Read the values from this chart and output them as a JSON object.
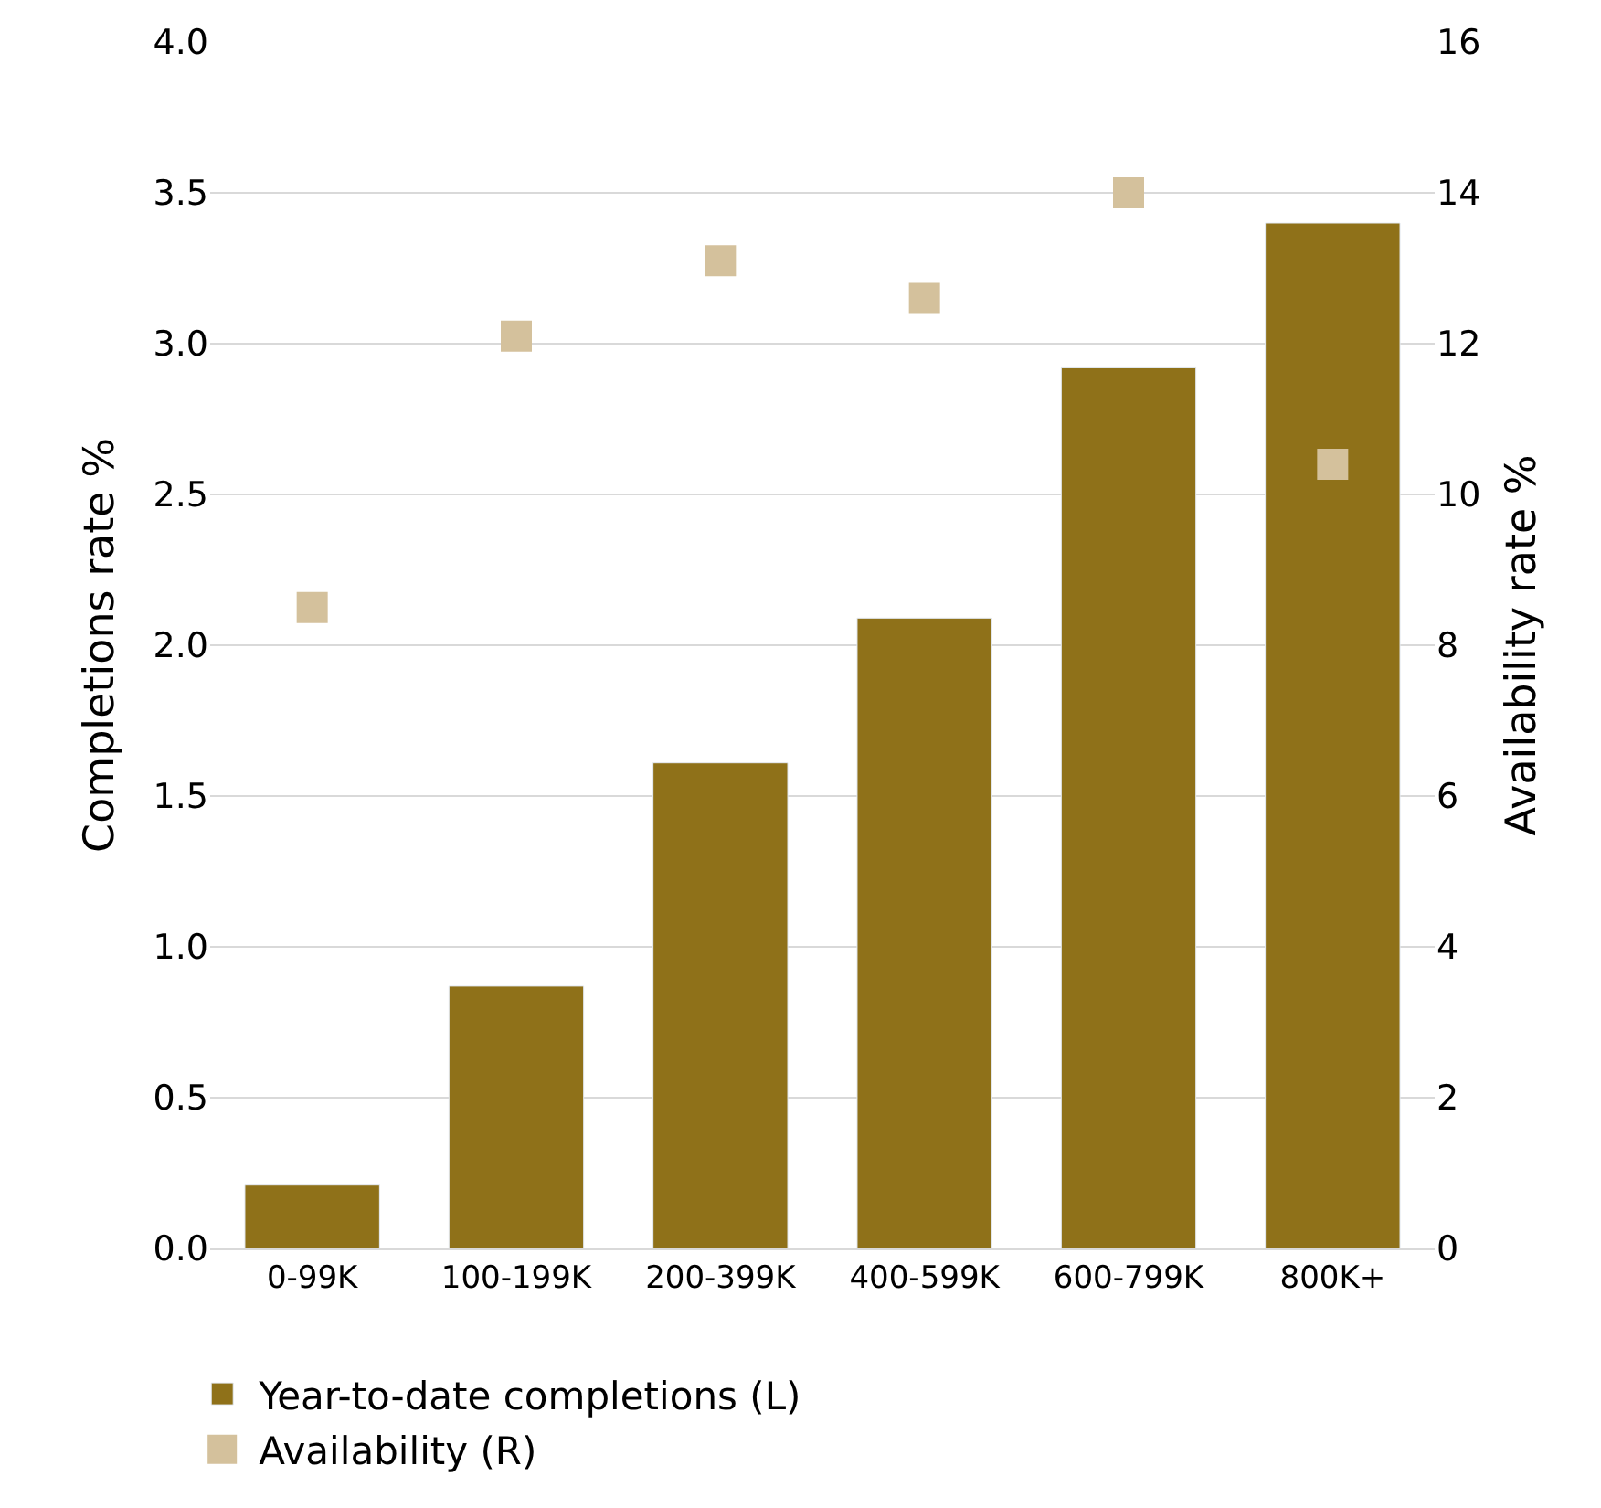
{
  "chart_data": {
    "type": "bar",
    "ylabel": "Completions rate %",
    "y2label": "Availability rate %",
    "categories": [
      "0-99K",
      "100-199K",
      "200-399K",
      "400-599K",
      "600-799K",
      "800K+"
    ],
    "series": [
      {
        "name": "Year-to-date completions (L)",
        "color": "#8f7119",
        "values": [
          0.21,
          0.87,
          1.61,
          2.09,
          2.92,
          3.4
        ]
      },
      {
        "name": "Availability (R)",
        "type": "scatter",
        "axis": "y2",
        "marker": "square",
        "color": "#d4c19c",
        "values": [
          8.5,
          12.1,
          13.1,
          12.6,
          14.0,
          10.4
        ]
      }
    ],
    "ylim": [
      0,
      4
    ],
    "yticks": [
      {
        "value": 0,
        "label": "0.0"
      },
      {
        "value": 0.5,
        "label": "0.5"
      },
      {
        "value": 1,
        "label": "1.0"
      },
      {
        "value": 1.5,
        "label": "1.5"
      },
      {
        "value": 2,
        "label": "2.0"
      },
      {
        "value": 2.5,
        "label": "2.5"
      },
      {
        "value": 3,
        "label": "3.0"
      },
      {
        "value": 3.5,
        "label": "3.5"
      },
      {
        "value": 4,
        "label": "4.0"
      }
    ],
    "y2lim": [
      0,
      16
    ],
    "y2ticks": [
      0,
      2,
      4,
      6,
      8,
      10,
      12,
      14,
      16
    ],
    "grid": "y",
    "legend": "bottom"
  }
}
